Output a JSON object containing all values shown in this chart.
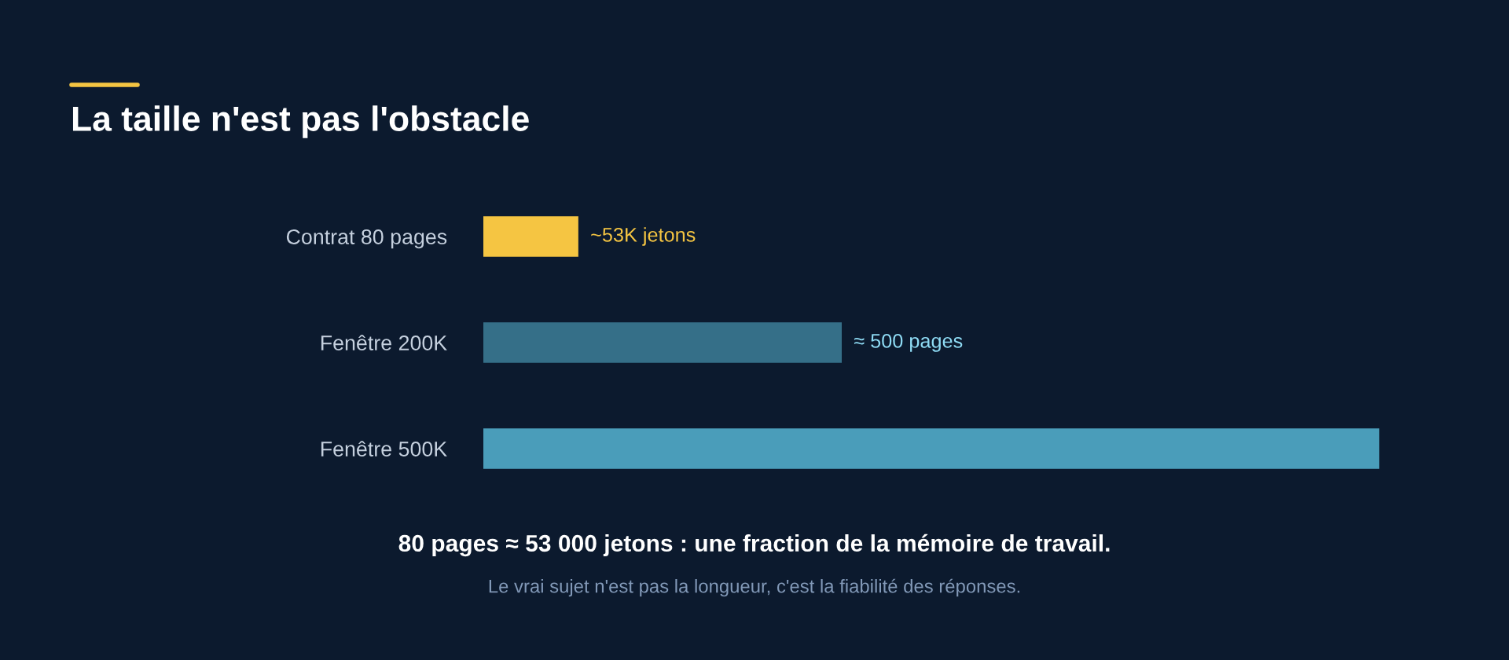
{
  "chart_data": {
    "type": "bar",
    "orientation": "horizontal",
    "tick_labels": "y",
    "title": "La taille n'est pas l'obstacle",
    "categories": [
      "Contrat 80 pages",
      "Fenêtre 200K",
      "Fenêtre 500K"
    ],
    "values": [
      53,
      200,
      500
    ],
    "xlim": [
      0,
      500
    ],
    "colors": [
      "#f5c542",
      "#356f88",
      "#4a9dba"
    ],
    "value_labels": [
      "~53K jetons",
      null,
      null
    ],
    "annotations": [
      {
        "text": "≈ 500 pages",
        "x": 200,
        "y": "Fenêtre 200K"
      },
      "80 pages ≈ 53 000 jetons : une fraction de la mémoire de travail.",
      "Le vrai sujet n'est pas la longueur, c'est la fiabilité des réponses."
    ]
  }
}
